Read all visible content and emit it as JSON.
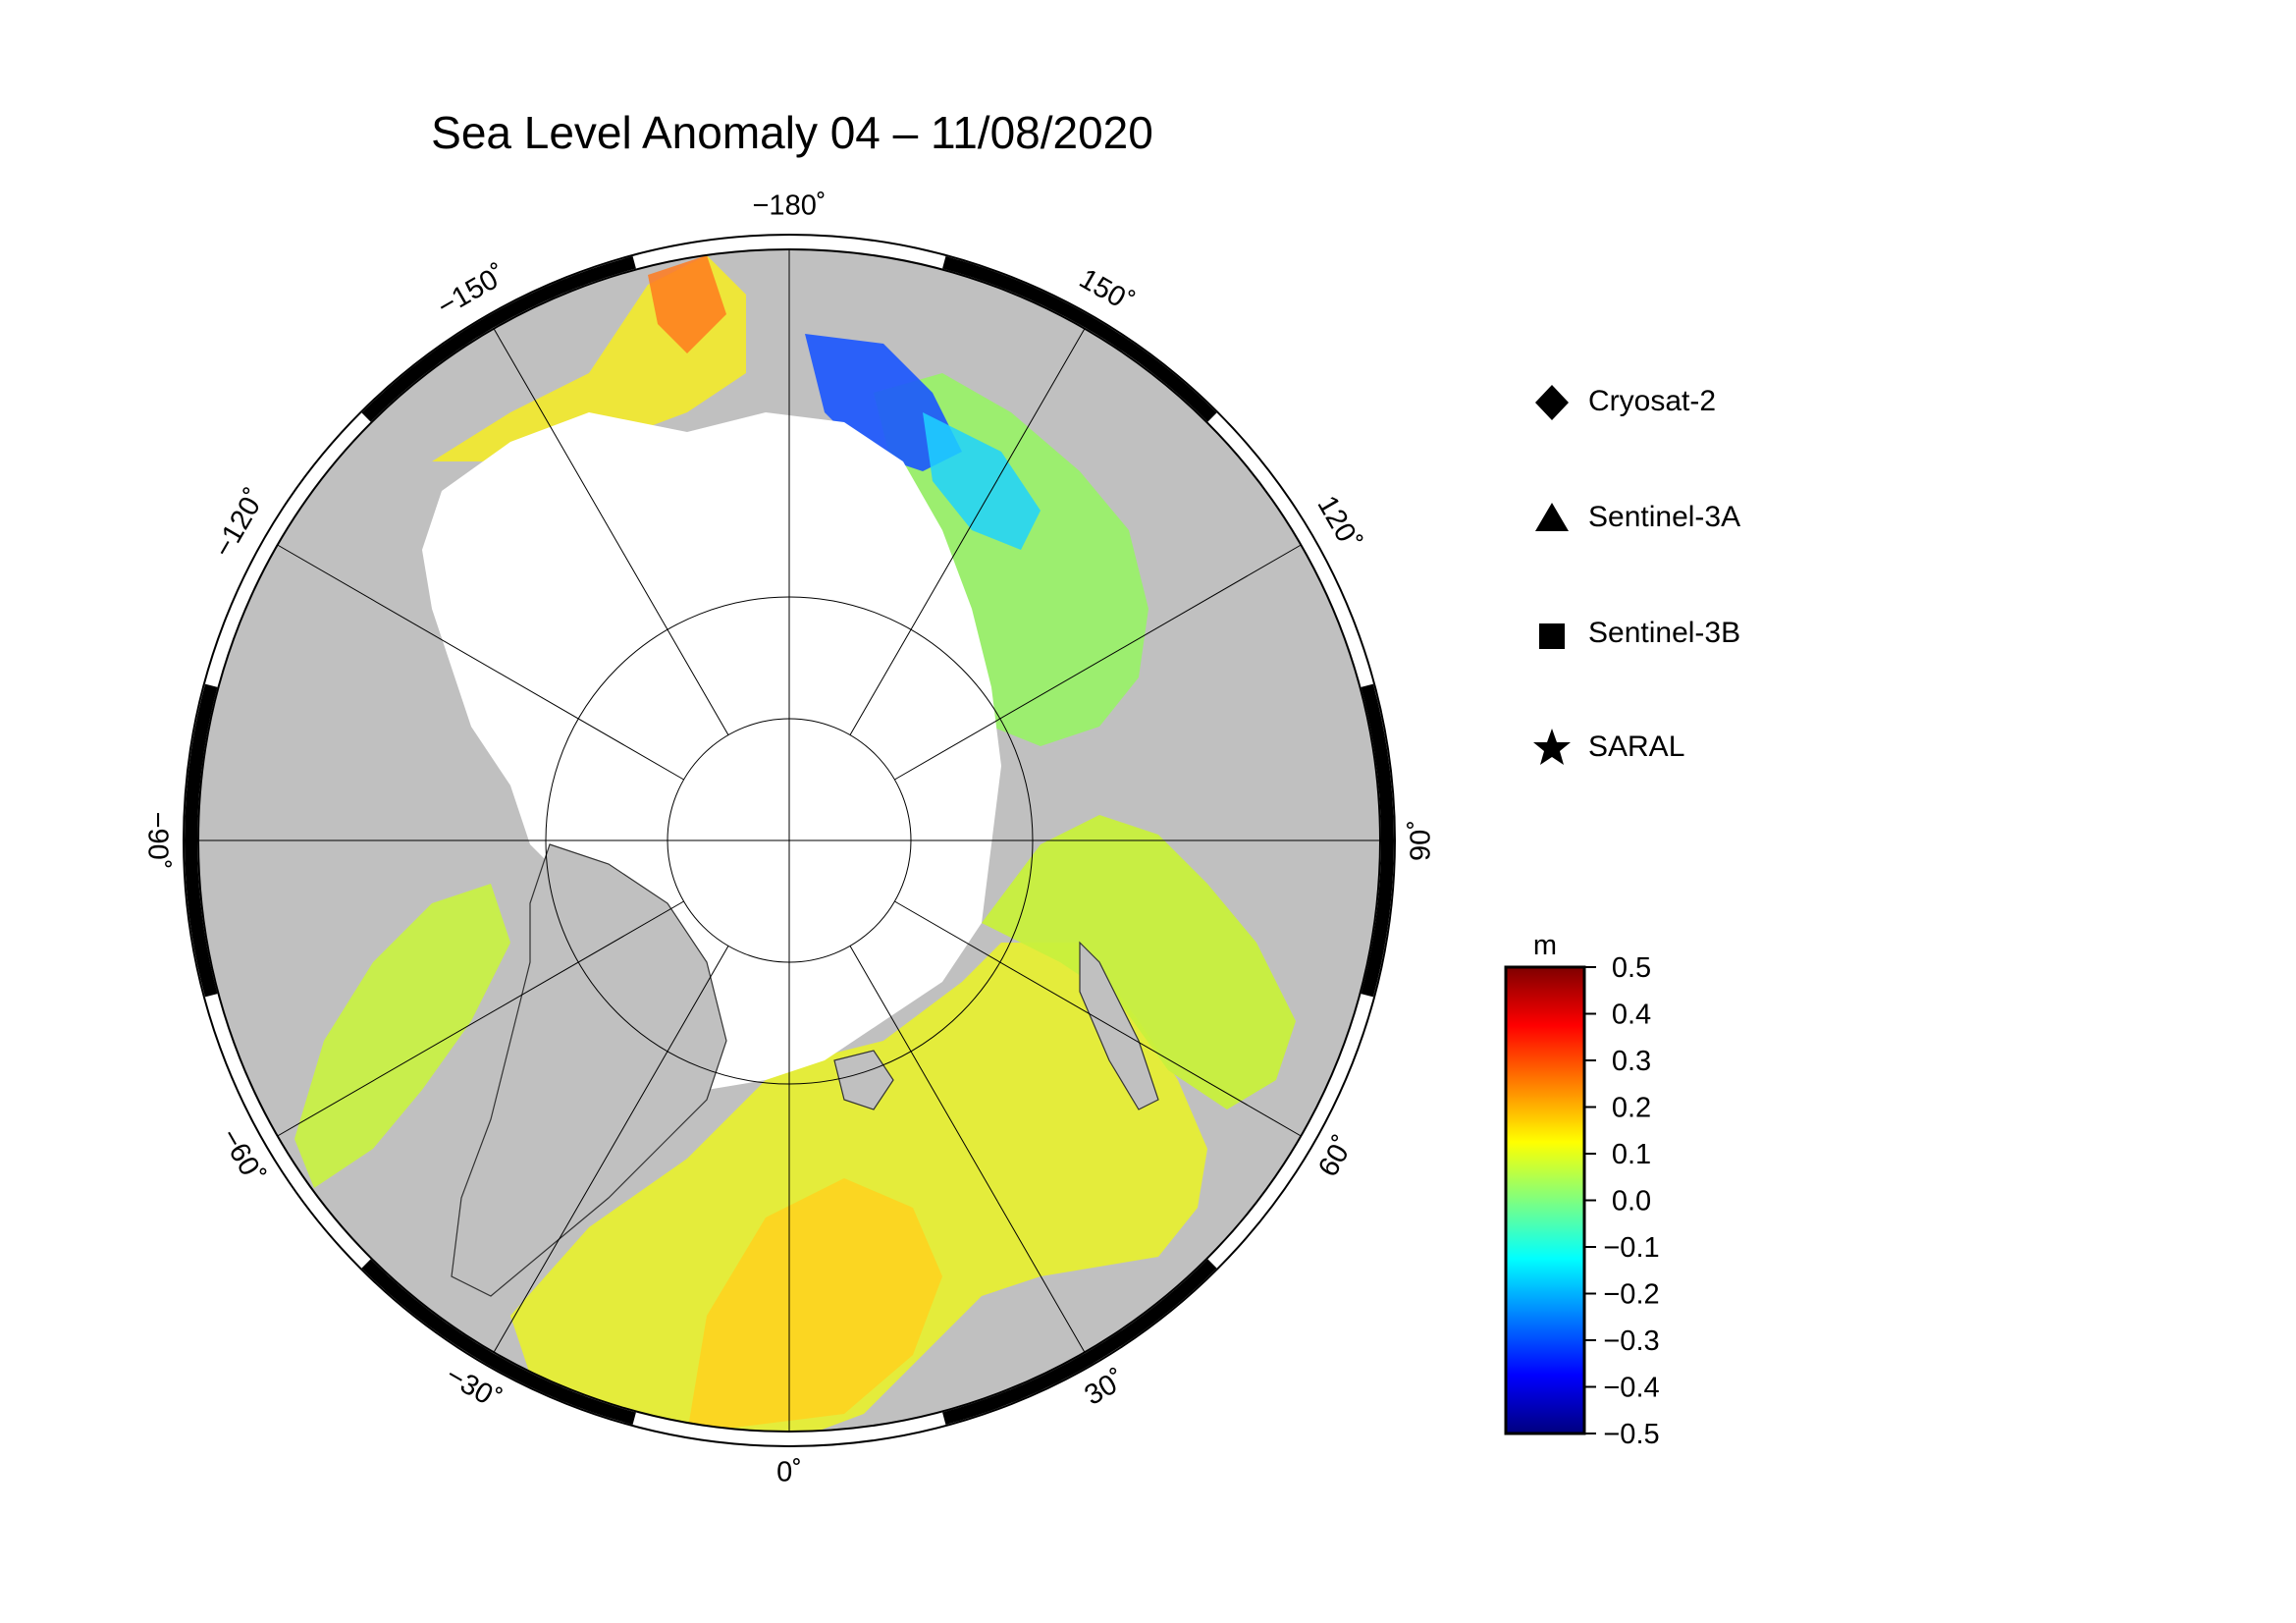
{
  "title": "Sea Level Anomaly 04 – 11/08/2020",
  "map": {
    "projection": "north-polar-stereographic",
    "longitude_labels": [
      {
        "lon": -180,
        "text": "−180˚"
      },
      {
        "lon": 150,
        "text": "150˚"
      },
      {
        "lon": 120,
        "text": "120˚"
      },
      {
        "lon": 90,
        "text": "90˚"
      },
      {
        "lon": 60,
        "text": "60˚"
      },
      {
        "lon": 30,
        "text": "30˚"
      },
      {
        "lon": 0,
        "text": "0˚"
      },
      {
        "lon": -30,
        "text": "−30˚"
      },
      {
        "lon": -60,
        "text": "−60˚"
      },
      {
        "lon": -90,
        "text": "−90˚"
      },
      {
        "lon": -120,
        "text": "−120˚"
      },
      {
        "lon": -150,
        "text": "−150˚"
      }
    ],
    "colors": {
      "land": "#c0c0c0",
      "ice": "#ffffff",
      "frame": "#000000"
    }
  },
  "legend": {
    "items": [
      {
        "name": "Cryosat-2",
        "symbol": "diamond-icon"
      },
      {
        "name": "Sentinel-3A",
        "symbol": "triangle-icon"
      },
      {
        "name": "Sentinel-3B",
        "symbol": "square-icon"
      },
      {
        "name": "SARAL",
        "symbol": "star-icon"
      }
    ]
  },
  "colorbar": {
    "unit": "m",
    "min": -0.5,
    "max": 0.5,
    "ticks": [
      "0.5",
      "0.4",
      "0.3",
      "0.2",
      "0.1",
      "0.0",
      "−0.1",
      "−0.2",
      "−0.3",
      "−0.4",
      "−0.5"
    ],
    "colormap": [
      "#00007f",
      "#0000ff",
      "#007fff",
      "#00ffff",
      "#7fff7f",
      "#ffff00",
      "#ff7f00",
      "#ff0000",
      "#7f0000"
    ]
  }
}
